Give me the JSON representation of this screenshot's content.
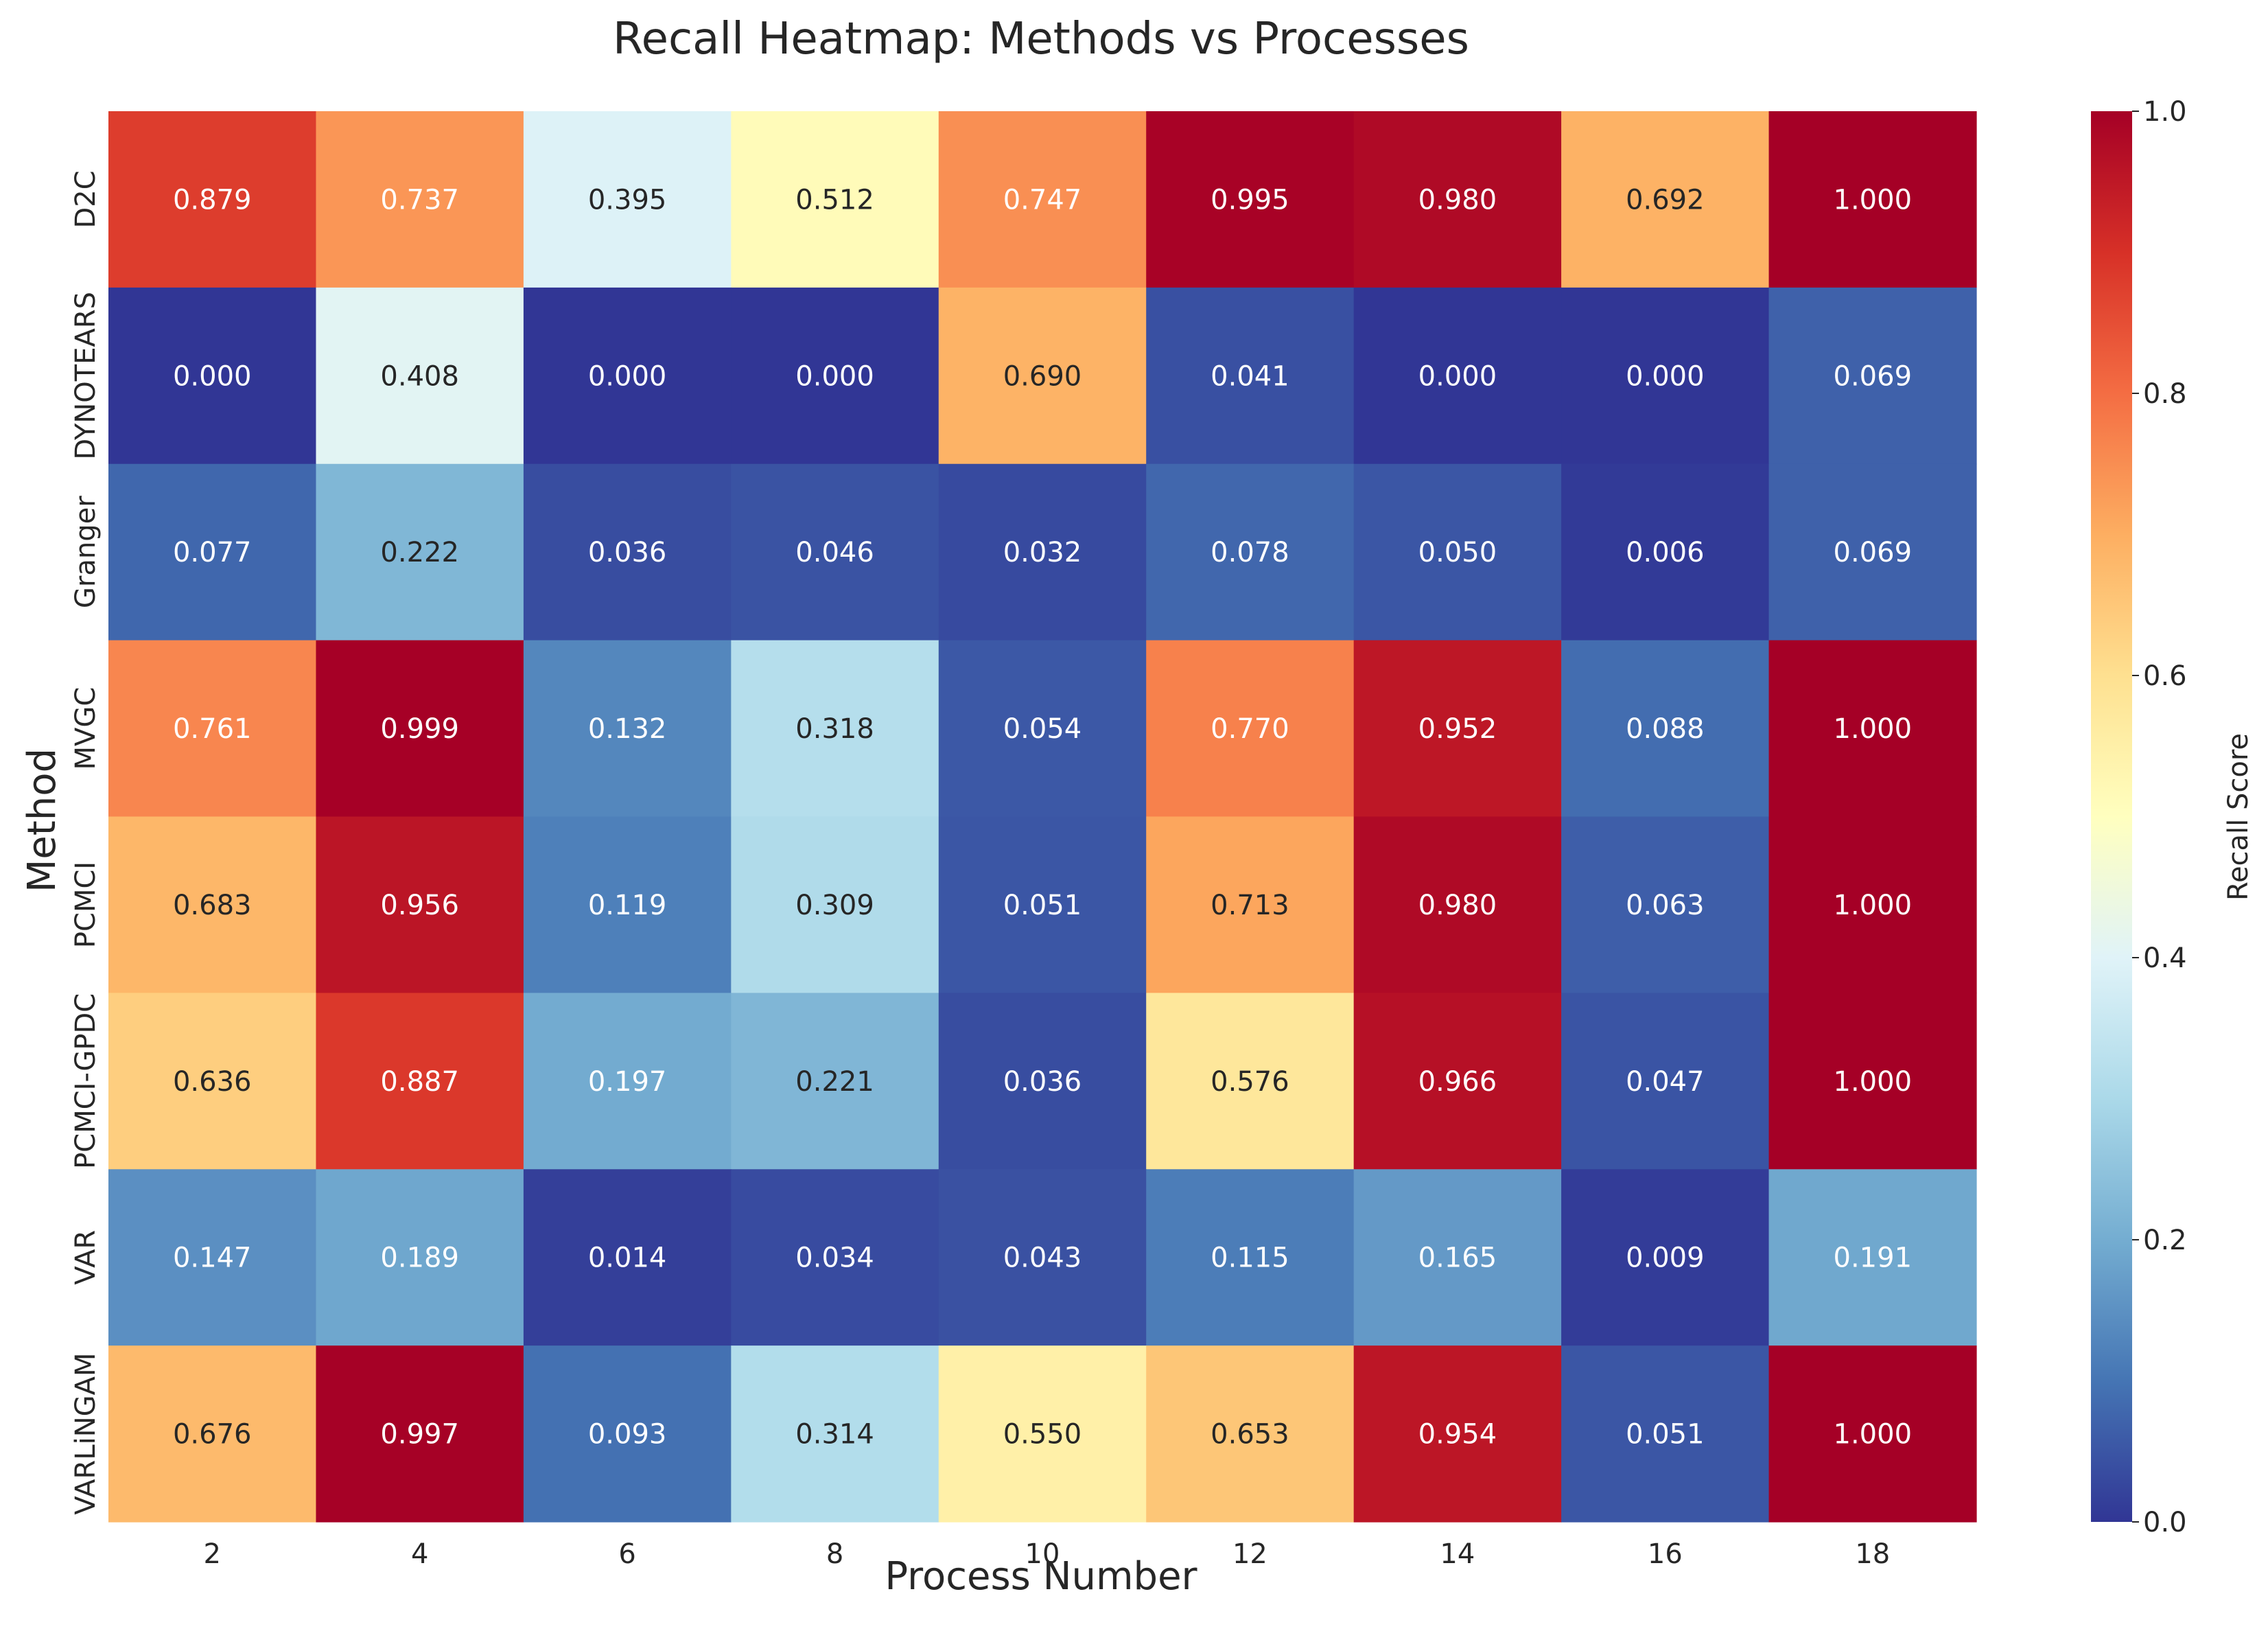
{
  "chart_data": {
    "type": "heatmap",
    "title": "Recall Heatmap: Methods vs Processes",
    "xlabel": "Process Number",
    "ylabel": "Method",
    "colorbar_label": "Recall Score",
    "colormap": "RdYlBu_r",
    "vmin": 0.0,
    "vmax": 1.0,
    "colorbar_ticks": [
      "0.0",
      "0.2",
      "0.4",
      "0.6",
      "0.8",
      "1.0"
    ],
    "x_categories": [
      "2",
      "4",
      "6",
      "8",
      "10",
      "12",
      "14",
      "16",
      "18"
    ],
    "y_categories": [
      "D2C",
      "DYNOTEARS",
      "Granger",
      "MVGC",
      "PCMCI",
      "PCMCI-GPDC",
      "VAR",
      "VARLiNGAM"
    ],
    "values": [
      [
        0.879,
        0.737,
        0.395,
        0.512,
        0.747,
        0.995,
        0.98,
        0.692,
        1.0
      ],
      [
        0.0,
        0.408,
        0.0,
        0.0,
        0.69,
        0.041,
        0.0,
        0.0,
        0.069
      ],
      [
        0.077,
        0.222,
        0.036,
        0.046,
        0.032,
        0.078,
        0.05,
        0.006,
        0.069
      ],
      [
        0.761,
        0.999,
        0.132,
        0.318,
        0.054,
        0.77,
        0.952,
        0.088,
        1.0
      ],
      [
        0.683,
        0.956,
        0.119,
        0.309,
        0.051,
        0.713,
        0.98,
        0.063,
        1.0
      ],
      [
        0.636,
        0.887,
        0.197,
        0.221,
        0.036,
        0.576,
        0.966,
        0.047,
        1.0
      ],
      [
        0.147,
        0.189,
        0.014,
        0.034,
        0.043,
        0.115,
        0.165,
        0.009,
        0.191
      ],
      [
        0.676,
        0.997,
        0.093,
        0.314,
        0.55,
        0.653,
        0.954,
        0.051,
        1.0
      ]
    ]
  }
}
